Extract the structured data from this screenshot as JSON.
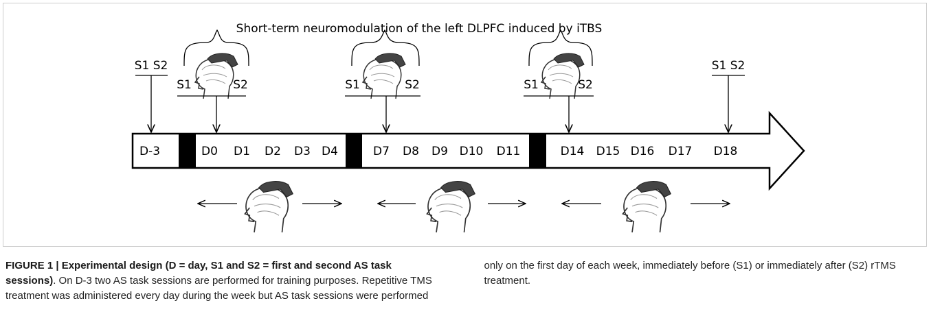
{
  "diagram": {
    "title": "Short-term neuromodulation of the left DLPFC induced by iTBS",
    "sessions": [
      "S1 S2",
      "S1",
      "S2",
      "S1",
      "S2",
      "S1",
      "S2",
      "S1 S2"
    ],
    "days": [
      "D-3",
      "D0",
      "D1",
      "D2",
      "D3",
      "D4",
      "D7",
      "D8",
      "D9",
      "D10",
      "D11",
      "D14",
      "D15",
      "D16",
      "D17",
      "D18"
    ]
  },
  "caption": {
    "lead": "FIGURE 1 | Experimental design (D = day, S1 and S2 = first and second AS task sessions)",
    "body": ". On D-3 two AS task sessions are performed for training purposes. Repetitive TMS treatment was administered every day during the week but AS task sessions were performed only on the first day of each week, immediately before (S1) or immediately after (S2) rTMS treatment."
  }
}
